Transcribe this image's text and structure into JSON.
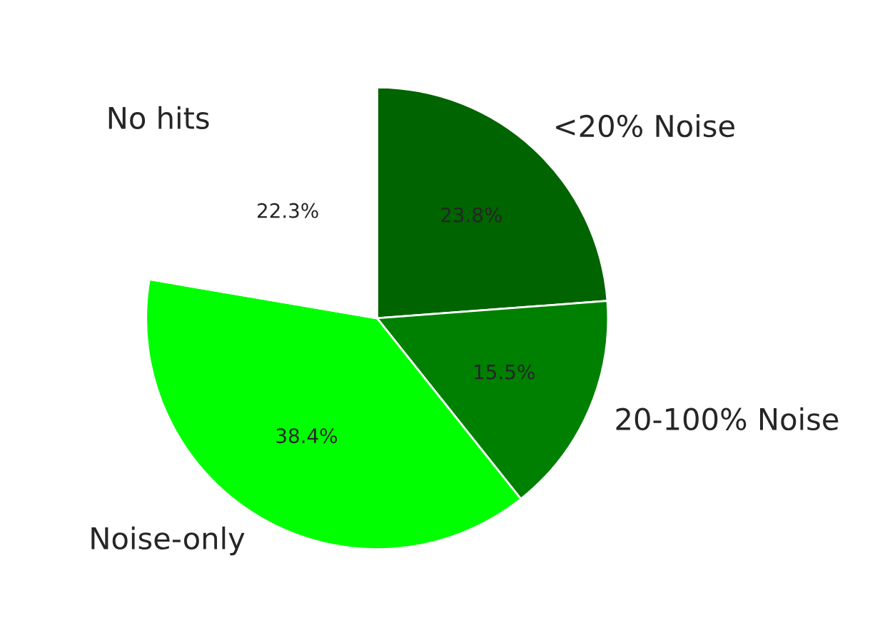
{
  "chart_data": {
    "type": "pie",
    "categories": [
      "<20% Noise",
      "20-100% Noise",
      "Noise-only",
      "No hits"
    ],
    "values": [
      23.8,
      15.5,
      38.4,
      22.3
    ],
    "colors": [
      "#006400",
      "#008000",
      "#00ff00",
      "#ffffff"
    ],
    "value_labels": [
      "23.8%",
      "15.5%",
      "38.4%",
      "22.3%"
    ]
  }
}
